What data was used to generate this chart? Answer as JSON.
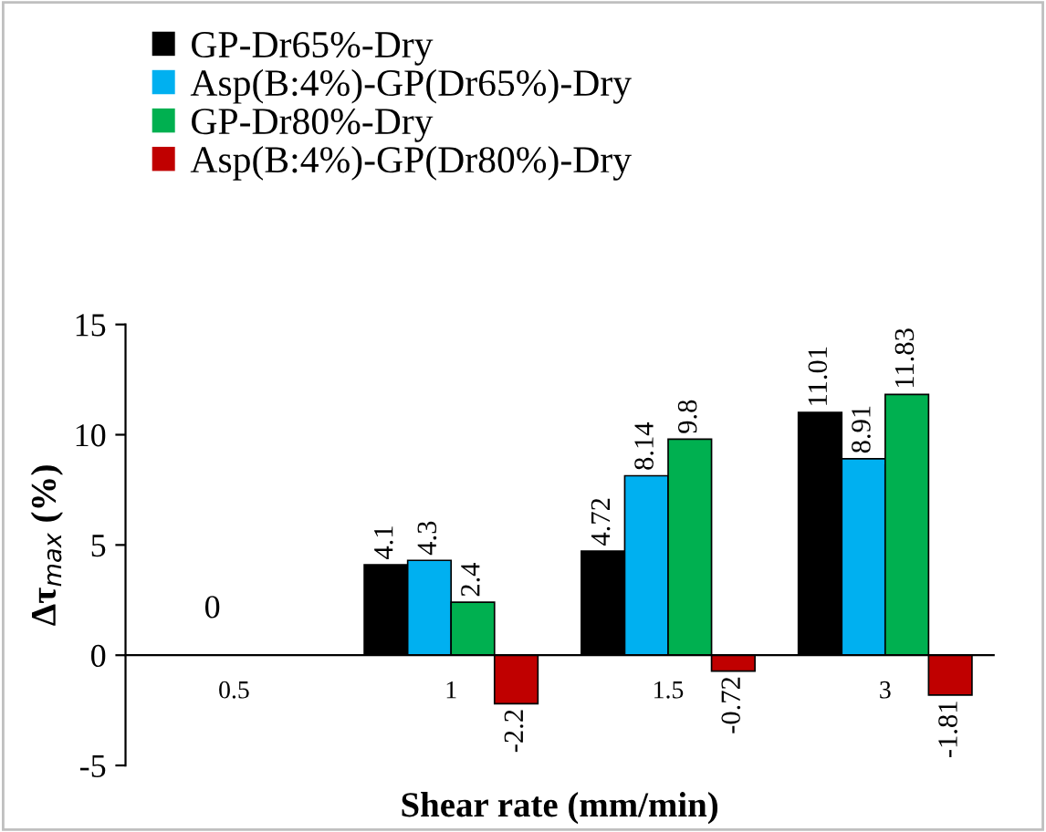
{
  "chart_data": {
    "type": "bar",
    "xlabel": "Shear rate (mm/min)",
    "ylabel": "Δτ$_{max}$ (%)",
    "categories": [
      "0.5",
      "1",
      "1.5",
      "3"
    ],
    "series": [
      {
        "name": "GP-Dr65%-Dry",
        "color": "#000000",
        "values": [
          0,
          4.1,
          4.72,
          11.01
        ],
        "value_labels": [
          null,
          "4.1",
          "4.72",
          "11.01"
        ]
      },
      {
        "name": "Asp(B:4%)-GP(Dr65%)-Dry",
        "color": "#00b0f0",
        "values": [
          0,
          4.3,
          8.14,
          8.91
        ],
        "value_labels": [
          "0",
          "4.3",
          "8.14",
          "8.91"
        ]
      },
      {
        "name": "GP-Dr80%-Dry",
        "color": "#00b050",
        "values": [
          0,
          2.4,
          9.8,
          11.83
        ],
        "value_labels": [
          null,
          "2.4",
          "9.8",
          "11.83"
        ]
      },
      {
        "name": "Asp(B:4%)-GP(Dr80%)-Dry",
        "color": "#c00000",
        "values": [
          0,
          -2.2,
          -0.72,
          -1.81
        ],
        "value_labels": [
          null,
          "-2.2",
          "-0.72",
          "-1.81"
        ]
      }
    ],
    "ylim": [
      -5,
      15
    ],
    "yticks": [
      -5,
      0,
      5,
      10,
      15
    ],
    "grid": false,
    "legend": "top"
  }
}
